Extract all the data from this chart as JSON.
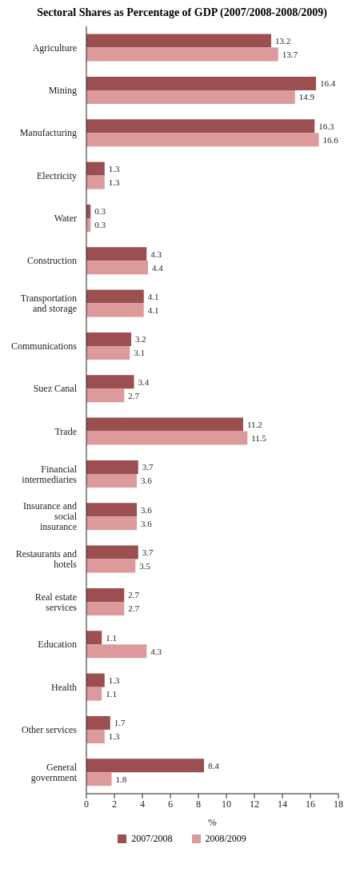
{
  "chart_data": {
    "type": "bar",
    "orientation": "horizontal",
    "title": "Sectoral Shares as Percentage of GDP (2007/2008-2008/2009)",
    "xlabel": "%",
    "categories": [
      "Agriculture",
      "Mining",
      "Manufacturing",
      "Electricity",
      "Water",
      "Construction",
      "Transportation and storage",
      "Communications",
      "Suez Canal",
      "Trade",
      "Financial intermediaries",
      "Insurance and social insurance",
      "Restaurants and hotels",
      "Real estate services",
      "Education",
      "Health",
      "Other services",
      "General government"
    ],
    "series": [
      {
        "name": "2007/2008",
        "color": "#9b4f50",
        "values": [
          13.2,
          16.4,
          16.3,
          1.3,
          0.3,
          4.3,
          4.1,
          3.2,
          3.4,
          11.2,
          3.7,
          3.6,
          3.7,
          2.7,
          1.1,
          1.3,
          1.7,
          8.4
        ]
      },
      {
        "name": "2008/2009",
        "color": "#dc9a9c",
        "values": [
          13.7,
          14.9,
          16.6,
          1.3,
          0.3,
          4.4,
          4.1,
          3.1,
          2.7,
          11.5,
          3.6,
          3.6,
          3.5,
          2.7,
          4.3,
          1.1,
          1.3,
          1.8
        ]
      }
    ],
    "xlim": [
      0,
      18
    ],
    "xticks": [
      0,
      2,
      4,
      6,
      8,
      10,
      12,
      14,
      16,
      18
    ],
    "data_labels": true,
    "legend": "bottom"
  }
}
